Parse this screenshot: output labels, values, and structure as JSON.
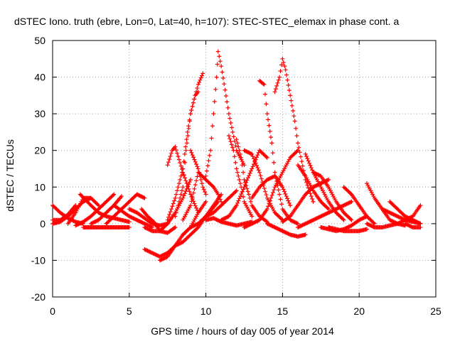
{
  "chart_data": {
    "type": "scatter",
    "title": "dSTEC Iono. truth (ebre, Lon=0, Lat=40, h=107): STEC-STEC_elemax in phase cont. a",
    "xlabel": "GPS time / hours of day 005 of year 2014",
    "ylabel": "dSTEC  / TECUs",
    "xlim": [
      0,
      25
    ],
    "ylim": [
      -20,
      50
    ],
    "x_ticks": [
      0,
      5,
      10,
      15,
      20,
      25
    ],
    "y_ticks": [
      -20,
      -10,
      0,
      10,
      20,
      30,
      40,
      50
    ],
    "grid": true,
    "marker": "+",
    "color": "#ff0000",
    "series": [
      {
        "x": [
          0.0,
          0.5,
          1.0,
          1.5,
          2.0
        ],
        "y": [
          5,
          3,
          1.5,
          0.5,
          0
        ]
      },
      {
        "x": [
          0.0,
          0.5,
          1.0,
          1.5,
          2.0,
          2.5
        ],
        "y": [
          0,
          0.5,
          2,
          4,
          6,
          7
        ]
      },
      {
        "x": [
          0.0,
          0.5,
          1.0,
          1.5
        ],
        "y": [
          1,
          1,
          2.5,
          5
        ]
      },
      {
        "x": [
          1.0,
          1.5,
          2.0,
          2.5,
          3.0
        ],
        "y": [
          0,
          3,
          7,
          7,
          5
        ]
      },
      {
        "x": [
          1.8,
          2.5,
          3.0,
          3.5,
          4.0,
          4.5,
          5.0
        ],
        "y": [
          8,
          5,
          3,
          2,
          1.5,
          1,
          0.5
        ]
      },
      {
        "x": [
          2.0,
          3.0,
          4.0,
          5.0
        ],
        "y": [
          -1,
          -1,
          -1,
          -1
        ]
      },
      {
        "x": [
          1.5,
          2.0,
          2.5,
          3.0,
          3.5,
          4.0
        ],
        "y": [
          -0.5,
          0.5,
          2,
          4,
          6,
          8
        ]
      },
      {
        "x": [
          2.5,
          3.0,
          3.5,
          4.0,
          4.5
        ],
        "y": [
          0,
          1,
          3,
          5,
          7.5
        ]
      },
      {
        "x": [
          3.5,
          4.0,
          4.5,
          5.0,
          5.5,
          6.0
        ],
        "y": [
          0,
          2,
          4,
          6,
          8,
          7
        ]
      },
      {
        "x": [
          4.0,
          4.5,
          5.0,
          5.5,
          6.0,
          6.5
        ],
        "y": [
          5,
          3.5,
          2,
          1,
          0,
          -1
        ]
      },
      {
        "x": [
          5.0,
          5.5,
          6.0,
          6.5,
          7.0,
          7.5
        ],
        "y": [
          4,
          3,
          1.5,
          0,
          -0.5,
          0
        ]
      },
      {
        "x": [
          5.8,
          6.2,
          6.6,
          7.0,
          7.5,
          8.0
        ],
        "y": [
          4,
          2,
          0.5,
          -2,
          -2.5,
          -1
        ]
      },
      {
        "x": [
          6.0,
          6.5,
          7.0,
          7.5,
          8.0,
          8.5,
          9.0
        ],
        "y": [
          -1,
          -2,
          -2,
          0,
          3,
          7,
          12
        ]
      },
      {
        "x": [
          6.0,
          6.5,
          7.0,
          7.5,
          8.0,
          8.5,
          9.0,
          9.5,
          10.0,
          10.8
        ],
        "y": [
          -7,
          -8,
          -9,
          -8,
          -6,
          -5,
          -3,
          -1,
          2,
          6
        ]
      },
      {
        "x": [
          7.0,
          7.5,
          8.0,
          8.5,
          9.0,
          9.5,
          10.0
        ],
        "y": [
          -10,
          -9,
          -6,
          -3,
          -1,
          3,
          6
        ]
      },
      {
        "x": [
          7.5,
          7.8,
          8.0,
          8.5,
          9.0,
          9.5
        ],
        "y": [
          16,
          20,
          21,
          14,
          8,
          3
        ]
      },
      {
        "x": [
          7.5,
          8.0,
          8.5,
          8.8,
          9.0,
          9.3,
          9.5,
          9.8
        ],
        "y": [
          1,
          7,
          15,
          25,
          30,
          35,
          38,
          41
        ]
      },
      {
        "x": [
          8.0,
          8.5,
          8.7,
          9.0,
          9.3,
          9.5
        ],
        "y": [
          2,
          10,
          20,
          30,
          35,
          36
        ]
      },
      {
        "x": [
          8.5,
          9.0,
          9.5,
          10.0,
          10.5,
          10.8,
          11.0
        ],
        "y": [
          1,
          5,
          14,
          12,
          10,
          8,
          6
        ]
      },
      {
        "x": [
          9.0,
          9.5,
          9.8,
          10.0
        ],
        "y": [
          20,
          15,
          10,
          8
        ]
      },
      {
        "x": [
          8.5,
          9.0,
          9.5,
          10.0,
          10.5,
          11.0
        ],
        "y": [
          -3,
          -1,
          0,
          2,
          5,
          8
        ]
      },
      {
        "x": [
          10.0,
          10.3,
          10.5,
          10.7,
          10.8,
          11.0,
          11.5,
          12.0,
          12.5
        ],
        "y": [
          13,
          20,
          30,
          40,
          47,
          43,
          30,
          20,
          16
        ]
      },
      {
        "x": [
          9.5,
          10.0,
          10.5,
          11.0,
          11.5,
          12.0
        ],
        "y": [
          0,
          2,
          3,
          5,
          7,
          9
        ]
      },
      {
        "x": [
          10.0,
          10.5,
          11.0,
          11.5,
          12.0,
          12.5,
          13.0
        ],
        "y": [
          1,
          1.5,
          0.5,
          0,
          -0.5,
          0,
          0.5
        ]
      },
      {
        "x": [
          11.0,
          11.5,
          12.0,
          12.5,
          13.0,
          13.5,
          14.0
        ],
        "y": [
          1,
          2,
          5,
          10,
          15,
          20,
          18
        ]
      },
      {
        "x": [
          11.5,
          11.8,
          12.0,
          12.3,
          12.5,
          13.0
        ],
        "y": [
          24,
          20,
          15,
          10,
          6,
          2
        ]
      },
      {
        "x": [
          12.0,
          12.3,
          12.5,
          12.8,
          13.0,
          13.5,
          14.0
        ],
        "y": [
          23,
          18,
          12,
          8,
          5,
          2,
          0.5
        ]
      },
      {
        "x": [
          12.5,
          13.0,
          13.5,
          14.0,
          14.5,
          15.0
        ],
        "y": [
          20,
          19,
          14,
          7,
          3,
          1
        ]
      },
      {
        "x": [
          12.5,
          13.0,
          13.5,
          14.0,
          14.5,
          15.0,
          15.5,
          16.0
        ],
        "y": [
          -1,
          0,
          1,
          4,
          10,
          14,
          18,
          20
        ]
      },
      {
        "x": [
          13.0,
          13.5,
          14.0,
          14.5,
          15.0,
          15.5
        ],
        "y": [
          7,
          10,
          12,
          13,
          10,
          5
        ]
      },
      {
        "x": [
          13.5,
          13.8,
          14.0,
          14.3,
          14.5,
          14.8,
          15.0,
          15.5,
          16.0
        ],
        "y": [
          39,
          38,
          30,
          22,
          14,
          8,
          4,
          1,
          0
        ]
      },
      {
        "x": [
          14.0,
          14.5,
          15.0,
          15.5,
          16.0,
          16.5
        ],
        "y": [
          0,
          -1,
          -2,
          -3,
          -3.5,
          -3
        ]
      },
      {
        "x": [
          14.5,
          14.8,
          15.0,
          15.2,
          15.5,
          15.8,
          16.0,
          16.5,
          17.0
        ],
        "y": [
          36,
          40,
          45,
          42,
          35,
          28,
          22,
          12,
          6
        ]
      },
      {
        "x": [
          15.0,
          15.5,
          16.0,
          16.5,
          17.0,
          17.5,
          18.0
        ],
        "y": [
          0.5,
          2,
          5,
          8,
          10,
          11,
          12
        ]
      },
      {
        "x": [
          16.0,
          16.5,
          17.0,
          17.5,
          18.0
        ],
        "y": [
          16,
          13,
          9,
          6,
          4
        ]
      },
      {
        "x": [
          16.5,
          17.0,
          17.5,
          18.0,
          18.5,
          19.0
        ],
        "y": [
          19,
          14,
          10,
          6,
          3,
          1
        ]
      },
      {
        "x": [
          16.0,
          16.5,
          17.0,
          17.5,
          18.0,
          18.5,
          19.0,
          19.5
        ],
        "y": [
          -1,
          0,
          1,
          2,
          3,
          4,
          5,
          6
        ]
      },
      {
        "x": [
          17.0,
          17.5,
          18.0,
          18.5,
          19.0,
          19.5
        ],
        "y": [
          14,
          13,
          10,
          6,
          3,
          1
        ]
      },
      {
        "x": [
          17.5,
          18.0,
          18.5,
          19.0,
          19.5,
          20.0,
          20.5
        ],
        "y": [
          -1,
          -1.5,
          -2,
          -1.5,
          -0.5,
          1,
          2
        ]
      },
      {
        "x": [
          18.0,
          18.5,
          19.0,
          19.5,
          20.0,
          20.5
        ],
        "y": [
          -1,
          -1.5,
          -2,
          -2,
          -2,
          -1.5
        ]
      },
      {
        "x": [
          19.0,
          19.5,
          20.0,
          20.5,
          21.0
        ],
        "y": [
          10,
          8,
          5,
          2,
          0
        ]
      },
      {
        "x": [
          20.5,
          21.0,
          21.5,
          22.0,
          22.5,
          23.0
        ],
        "y": [
          11,
          7,
          4,
          1,
          0,
          -0.5
        ]
      },
      {
        "x": [
          21.5,
          22.0,
          22.5,
          23.0,
          23.5,
          24.0
        ],
        "y": [
          4,
          3,
          2,
          1,
          0.5,
          0
        ]
      },
      {
        "x": [
          20.5,
          21.0,
          21.5,
          22.0,
          22.5,
          23.0,
          23.5,
          24.0
        ],
        "y": [
          0,
          -1,
          -1,
          -0.5,
          0,
          1,
          2,
          5
        ]
      },
      {
        "x": [
          22.0,
          22.5,
          23.0,
          23.5,
          24.0
        ],
        "y": [
          6,
          4,
          2,
          1,
          0
        ]
      },
      {
        "x": [
          23.0,
          23.5,
          24.0
        ],
        "y": [
          0,
          -1,
          -1
        ]
      }
    ]
  }
}
